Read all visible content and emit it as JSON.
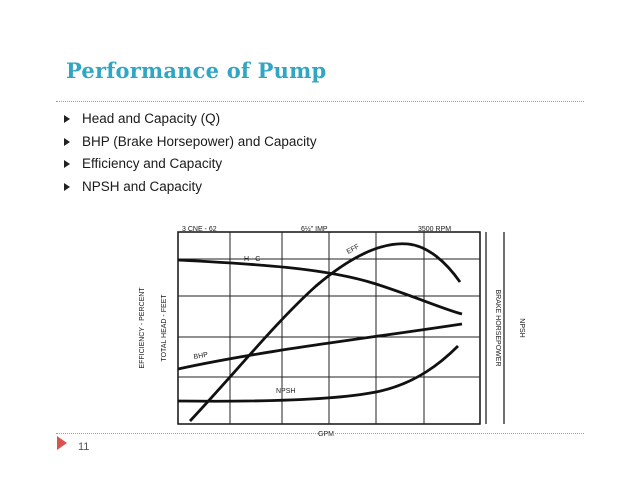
{
  "slide": {
    "title": "Performance of Pump",
    "title_color": "#31a6c4",
    "bullets": [
      "Head and Capacity (Q)",
      "BHP (Brake Horsepower) and Capacity",
      "Efficiency and Capacity",
      "NPSH and Capacity"
    ],
    "page_number": "11",
    "accent_color": "#d9534f"
  },
  "chart": {
    "header_left": "3 CNE - 62",
    "header_mid": "6½\" IMP",
    "header_right": "3500 RPM",
    "y_label_outer": "EFFICIENCY - PERCENT",
    "y_label_inner": "TOTAL HEAD - FEET",
    "y_label_right": "BRAKE HORSEPOWER",
    "y_label_right2": "NPSH",
    "x_label": "GPM",
    "curve_labels": {
      "hc": "H - C",
      "eff": "EFF",
      "bhp": "BHP",
      "npsh": "NPSH"
    }
  }
}
